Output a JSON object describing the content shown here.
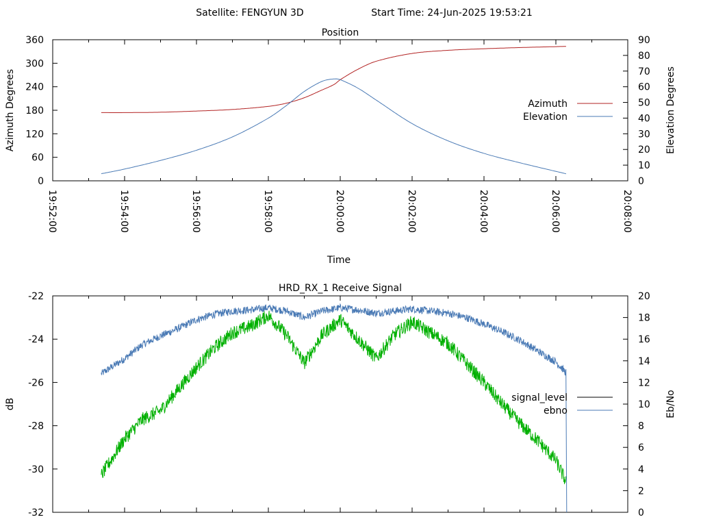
{
  "header": {
    "satellite_label": "Satellite: FENGYUN 3D",
    "start_time_label": "Start Time: 24-Jun-2025 19:53:21"
  },
  "chart_data": [
    {
      "id": "position",
      "type": "line",
      "title": "Position",
      "xlabel": "Time",
      "ylabel": "Azimuth Degrees",
      "y2label": "Elevation Degrees",
      "x_ticks": [
        "19:52:00",
        "19:54:00",
        "19:56:00",
        "19:58:00",
        "20:00:00",
        "20:02:00",
        "20:04:00",
        "20:06:00",
        "20:08:00"
      ],
      "xlim": [
        "19:52:00",
        "20:08:00"
      ],
      "ylim": [
        0,
        360
      ],
      "y_ticks": [
        "0",
        "60",
        "120",
        "180",
        "240",
        "300",
        "360"
      ],
      "y2lim": [
        0,
        90
      ],
      "y2_ticks": [
        "0",
        "10",
        "20",
        "30",
        "40",
        "50",
        "60",
        "70",
        "80",
        "90"
      ],
      "legend_position": "right",
      "colors": {
        "azimuth": "#b22222",
        "elevation": "#4a7ab5"
      },
      "series": [
        {
          "name": "Azimuth",
          "axis": "left",
          "x": [
            "19:53:21",
            "19:54:00",
            "19:55:00",
            "19:56:00",
            "19:57:00",
            "19:58:00",
            "19:58:30",
            "19:59:00",
            "19:59:30",
            "19:59:50",
            "20:00:00",
            "20:00:30",
            "20:01:00",
            "20:02:00",
            "20:03:00",
            "20:04:00",
            "20:05:00",
            "20:06:17"
          ],
          "values": [
            174,
            174,
            175,
            178,
            182,
            190,
            198,
            212,
            232,
            246,
            258,
            285,
            305,
            325,
            333,
            337,
            340,
            343
          ]
        },
        {
          "name": "Elevation",
          "axis": "right",
          "x": [
            "19:53:21",
            "19:54:00",
            "19:55:00",
            "19:56:00",
            "19:57:00",
            "19:58:00",
            "19:58:30",
            "19:59:00",
            "19:59:30",
            "19:59:50",
            "20:00:00",
            "20:00:30",
            "20:01:00",
            "20:02:00",
            "20:03:00",
            "20:04:00",
            "20:05:00",
            "20:06:17"
          ],
          "values": [
            4.5,
            7.5,
            13,
            19.5,
            28,
            40,
            48,
            57,
            63.5,
            65,
            64.5,
            59,
            51.5,
            36.5,
            25.5,
            17.5,
            11.5,
            4.5
          ]
        }
      ]
    },
    {
      "id": "receive-signal",
      "type": "line",
      "title": "HRD_RX_1 Receive Signal",
      "xlabel": "",
      "ylabel": "dB",
      "y2label": "Eb/No",
      "xlim": [
        "19:52:00",
        "20:08:00"
      ],
      "ylim": [
        -32,
        -22
      ],
      "y_ticks": [
        "-32",
        "-30",
        "-28",
        "-26",
        "-24",
        "-22"
      ],
      "y2lim": [
        0,
        20
      ],
      "y2_ticks": [
        "0",
        "2",
        "4",
        "6",
        "8",
        "10",
        "12",
        "14",
        "16",
        "18",
        "20"
      ],
      "legend_position": "right",
      "colors": {
        "signal_level": "#00b000",
        "ebno": "#4a7ab5",
        "signal_level_legend": "#000000"
      },
      "series": [
        {
          "name": "signal_level",
          "axis": "left",
          "x": [
            "19:53:21",
            "19:54:00",
            "19:54:30",
            "19:55:00",
            "19:55:30",
            "19:56:00",
            "19:56:30",
            "19:57:00",
            "19:57:30",
            "19:58:00",
            "19:58:30",
            "19:59:00",
            "19:59:30",
            "20:00:00",
            "20:00:30",
            "20:01:00",
            "20:01:30",
            "20:02:00",
            "20:02:30",
            "20:03:00",
            "20:03:30",
            "20:04:00",
            "20:04:30",
            "20:05:00",
            "20:05:30",
            "20:06:00",
            "20:06:17"
          ],
          "values": [
            -30.3,
            -28.6,
            -27.7,
            -27.3,
            -26.3,
            -25.3,
            -24.4,
            -23.7,
            -23.4,
            -22.9,
            -23.8,
            -25.1,
            -23.8,
            -23.1,
            -24.0,
            -24.9,
            -23.8,
            -23.2,
            -23.7,
            -24.2,
            -25.1,
            -26.0,
            -27.0,
            -27.9,
            -28.7,
            -29.6,
            -30.6
          ]
        },
        {
          "name": "ebno",
          "axis": "right",
          "x": [
            "19:53:21",
            "19:54:00",
            "19:54:30",
            "19:55:00",
            "19:55:30",
            "19:56:00",
            "19:56:30",
            "19:57:00",
            "19:57:30",
            "19:58:00",
            "19:58:30",
            "19:59:00",
            "19:59:30",
            "20:00:00",
            "20:00:30",
            "20:01:00",
            "20:01:30",
            "20:02:00",
            "20:02:30",
            "20:03:00",
            "20:03:30",
            "20:04:00",
            "20:04:30",
            "20:05:00",
            "20:05:30",
            "20:06:00",
            "20:06:17",
            "20:06:18"
          ],
          "values": [
            12.8,
            14.2,
            15.5,
            16.3,
            17.0,
            17.8,
            18.3,
            18.6,
            18.7,
            18.9,
            18.6,
            18.0,
            18.6,
            18.9,
            18.7,
            18.4,
            18.6,
            18.8,
            18.6,
            18.4,
            18.0,
            17.4,
            16.7,
            15.9,
            14.9,
            13.9,
            12.9,
            0.0
          ]
        }
      ]
    }
  ]
}
